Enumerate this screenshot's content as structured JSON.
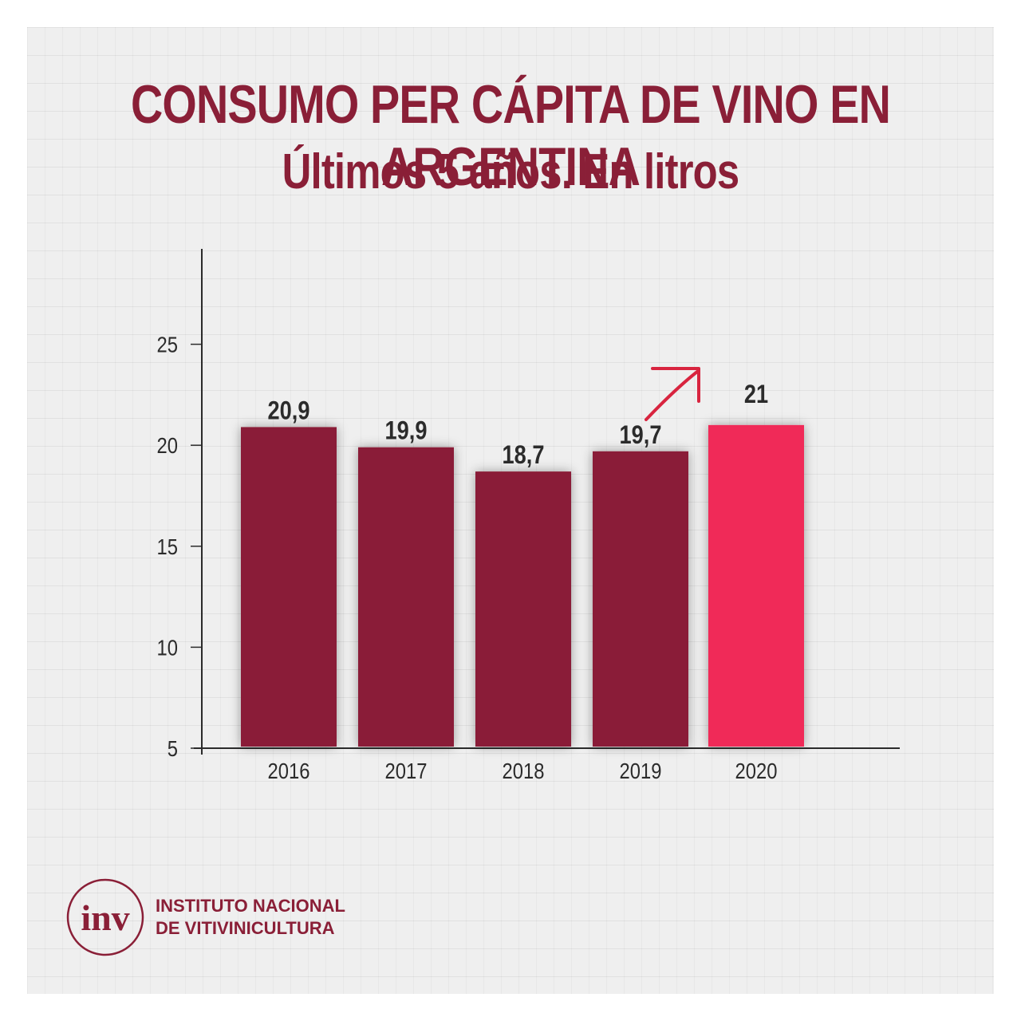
{
  "chart_data": {
    "type": "bar",
    "title": "CONSUMO PER CÁPITA DE VINO EN ARGENTINA",
    "subtitle": "Últimos 5 años. En litros",
    "categories": [
      "2016",
      "2017",
      "2018",
      "2019",
      "2020"
    ],
    "values": [
      20.9,
      19.9,
      18.7,
      19.7,
      21
    ],
    "value_labels": [
      "20,9",
      "19,9",
      "18,7",
      "19,7",
      "21"
    ],
    "yticks": [
      5,
      10,
      15,
      20,
      25
    ],
    "ylim": [
      5,
      30
    ],
    "grid": false,
    "colors": {
      "bar": "#8a1f37",
      "highlight_bar": "#f02a59",
      "arrow": "#d8243f",
      "text": "#2b2b2b"
    },
    "highlight_category": "2020",
    "annotation": "arrow pointing up-right toward 2020 bar"
  },
  "footer": {
    "logo_text": "inv",
    "org_line1": "INSTITUTO NACIONAL",
    "org_line2": "DE VITIVINICULTURA"
  }
}
